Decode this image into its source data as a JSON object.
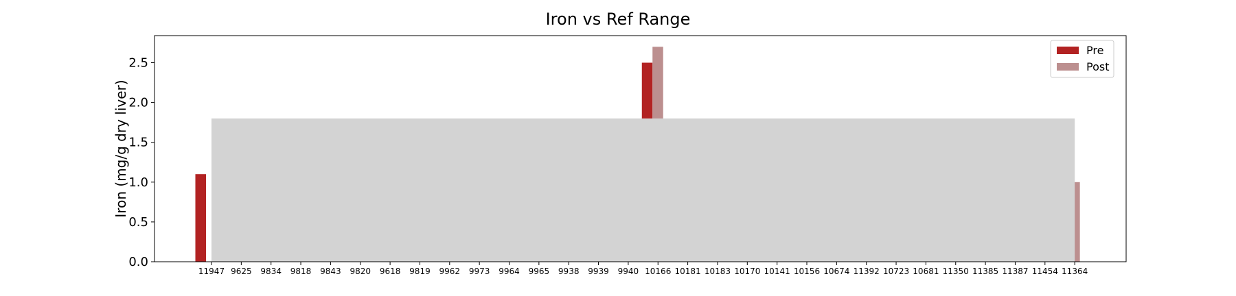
{
  "chart_data": {
    "type": "bar",
    "title": "Iron vs Ref Range",
    "xlabel": "",
    "ylabel": "Iron (mg/g dry liver)",
    "categories": [
      "11947",
      "9625",
      "9834",
      "9818",
      "9843",
      "9820",
      "9618",
      "9819",
      "9962",
      "9973",
      "9964",
      "9965",
      "9938",
      "9939",
      "9940",
      "10166",
      "10181",
      "10183",
      "10170",
      "10141",
      "10156",
      "10674",
      "11392",
      "10723",
      "10681",
      "11350",
      "11385",
      "11387",
      "11454",
      "11364"
    ],
    "series": [
      {
        "name": "Pre",
        "color": "#b22222",
        "values": [
          1.1,
          null,
          null,
          null,
          null,
          null,
          null,
          null,
          null,
          null,
          null,
          null,
          null,
          null,
          null,
          2.5,
          null,
          null,
          null,
          null,
          null,
          null,
          null,
          null,
          null,
          null,
          null,
          null,
          null,
          null
        ]
      },
      {
        "name": "Post",
        "color": "#bc8f8f",
        "values": [
          null,
          null,
          null,
          null,
          null,
          null,
          null,
          null,
          null,
          null,
          null,
          null,
          null,
          null,
          null,
          2.7,
          null,
          null,
          null,
          null,
          null,
          null,
          null,
          null,
          null,
          null,
          null,
          null,
          null,
          1.0
        ]
      }
    ],
    "reference_range": {
      "low": 0.0,
      "high": 1.8,
      "color": "#d3d3d3"
    },
    "yticks": [
      "0.0",
      "0.5",
      "1.0",
      "1.5",
      "2.0",
      "2.5"
    ],
    "ylim": [
      0,
      2.84
    ],
    "grid": false,
    "legend_position": "top-right"
  }
}
